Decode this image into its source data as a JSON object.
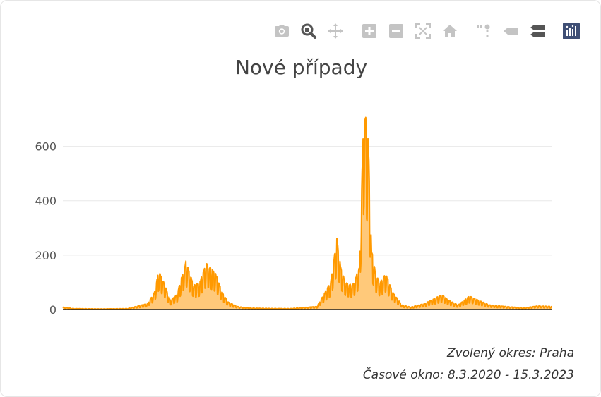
{
  "modebar": {
    "buttons": [
      {
        "name": "camera-icon",
        "title": "Download plot as png"
      },
      {
        "name": "zoom-icon",
        "title": "Zoom"
      },
      {
        "name": "pan-icon",
        "title": "Pan"
      },
      {
        "name": "zoom-in-icon",
        "title": "Zoom in"
      },
      {
        "name": "zoom-out-icon",
        "title": "Zoom out"
      },
      {
        "name": "autoscale-icon",
        "title": "Autoscale"
      },
      {
        "name": "home-icon",
        "title": "Reset axes"
      },
      {
        "name": "spike-lines-icon",
        "title": "Toggle spike lines"
      },
      {
        "name": "hover-closest-icon",
        "title": "Show closest data on hover"
      },
      {
        "name": "hover-compare-icon",
        "title": "Compare data on hover"
      },
      {
        "name": "plotly-logo-icon",
        "title": "Produced with Plotly"
      }
    ],
    "icon_color": "#b8b8b8",
    "active_color": "#555555",
    "logo_color": "#3f4f75"
  },
  "footer": {
    "district": "Zvolený okres: Praha",
    "window": "Časové okno: 8.3.2020 - 15.3.2023"
  },
  "chart_data": {
    "type": "area",
    "title": "Nové případy",
    "xlabel": "",
    "ylabel": "",
    "x_start": "2020-03-08",
    "x_end": "2023-03-15",
    "ylim": [
      0,
      700
    ],
    "yticks": [
      0,
      200,
      400,
      600
    ],
    "grid": true,
    "line_color": "#ff9900",
    "fill_color": "#ffc97a",
    "series": [
      {
        "x": [
          "2020-03-08",
          "2020-04-01",
          "2020-06-01",
          "2020-08-01",
          "2020-09-15",
          "2020-10-01",
          "2020-10-10",
          "2020-10-20",
          "2020-11-05",
          "2020-11-20",
          "2020-12-10",
          "2020-12-28",
          "2021-01-10",
          "2021-01-25",
          "2021-02-15",
          "2021-03-01",
          "2021-03-15",
          "2021-04-05",
          "2021-05-01",
          "2021-06-01",
          "2021-08-01",
          "2021-10-01",
          "2021-11-01",
          "2021-11-15",
          "2021-11-25",
          "2021-12-05",
          "2021-12-20",
          "2022-01-05",
          "2022-01-15",
          "2022-01-25",
          "2022-02-01",
          "2022-02-10",
          "2022-02-20",
          "2022-03-05",
          "2022-03-20",
          "2022-04-10",
          "2022-05-01",
          "2022-06-01",
          "2022-07-10",
          "2022-07-25",
          "2022-08-15",
          "2022-09-10",
          "2022-10-01",
          "2022-10-25",
          "2022-12-01",
          "2023-01-10",
          "2023-02-10",
          "2023-03-15"
        ],
        "values": [
          8,
          3,
          2,
          3,
          20,
          60,
          130,
          95,
          30,
          50,
          160,
          80,
          90,
          155,
          120,
          60,
          25,
          10,
          5,
          4,
          3,
          10,
          90,
          235,
          130,
          90,
          80,
          140,
          690,
          550,
          200,
          120,
          90,
          120,
          60,
          15,
          8,
          20,
          50,
          30,
          15,
          45,
          30,
          15,
          10,
          5,
          12,
          10
        ]
      }
    ]
  }
}
